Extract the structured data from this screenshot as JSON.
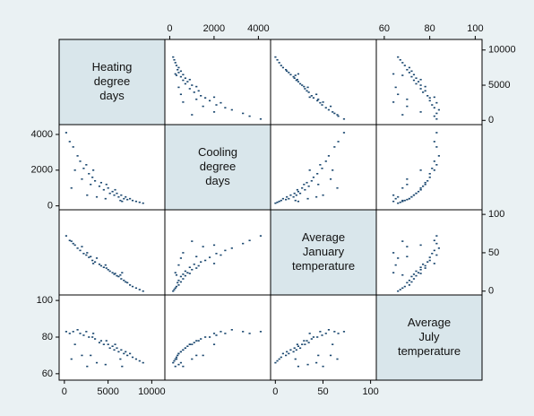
{
  "chart_data": {
    "type": "scatter_matrix",
    "color": "#1a476f",
    "diagonal_color": "#d9e6eb",
    "variables": [
      {
        "label_lines": [
          "Heating",
          "degree",
          "days"
        ],
        "lim": [
          -600,
          11500
        ],
        "ticks": [
          0,
          5000,
          10000
        ],
        "values": [
          200,
          600,
          1000,
          1500,
          1800,
          2200,
          2500,
          2800,
          3000,
          3200,
          3500,
          3700,
          4000,
          4200,
          4500,
          4700,
          5000,
          5200,
          5500,
          5700,
          6000,
          6200,
          6400,
          6500,
          6800,
          7000,
          7200,
          7500,
          7800,
          8200,
          8600,
          9000,
          2000,
          1200,
          4800,
          3300,
          5800,
          800,
          6600,
          2600
        ]
      },
      {
        "label_lines": [
          "Cooling",
          "degree",
          "days"
        ],
        "lim": [
          -220,
          4550
        ],
        "ticks": [
          0,
          2000,
          4000
        ],
        "values": [
          4100,
          3600,
          3300,
          2800,
          2500,
          2100,
          2300,
          1800,
          1200,
          1600,
          1400,
          500,
          1100,
          1300,
          900,
          400,
          1000,
          700,
          800,
          600,
          700,
          500,
          300,
          600,
          400,
          500,
          350,
          400,
          300,
          250,
          200,
          150,
          1500,
          2000,
          1200,
          2000,
          900,
          1000,
          250,
          600
        ]
      },
      {
        "label_lines": [
          "Average",
          "January",
          "temperature"
        ],
        "lim": [
          -5,
          106
        ],
        "ticks": [
          0,
          50,
          100
        ],
        "values": [
          72,
          66,
          62,
          56,
          53,
          49,
          47,
          44,
          45,
          40,
          38,
          43,
          35,
          33,
          31,
          34,
          28,
          26,
          24,
          22,
          20,
          19,
          21,
          16,
          14,
          12,
          11,
          8,
          6,
          4,
          2,
          0,
          58,
          60,
          30,
          36,
          23,
          65,
          24,
          50
        ]
      },
      {
        "label_lines": [
          "Average",
          "July",
          "temperature"
        ],
        "lim": [
          56.5,
          103
        ],
        "ticks": [
          60,
          80,
          100
        ],
        "values": [
          83,
          82,
          83,
          84,
          82,
          81,
          83,
          80,
          70,
          80,
          79,
          66,
          77,
          78,
          76,
          65,
          76,
          74,
          75,
          73,
          74,
          72,
          68,
          73,
          71,
          72,
          70,
          71,
          69,
          68,
          67,
          66,
          70,
          76,
          78,
          82,
          76,
          68,
          64,
          64
        ]
      }
    ]
  }
}
